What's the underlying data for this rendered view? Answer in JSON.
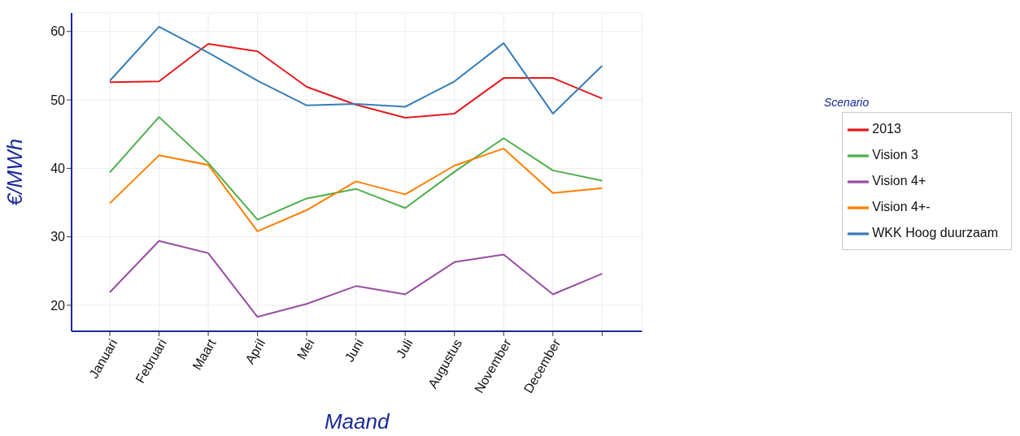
{
  "chart_data": {
    "type": "line",
    "xlabel": "Maand",
    "ylabel": "€/MWh",
    "legend_title": "Scenario",
    "categories": [
      "Januari",
      "Februari",
      "Maart",
      "April",
      "Mei",
      "Juni",
      "Juli",
      "Augustus",
      "November",
      "December",
      null
    ],
    "series": [
      {
        "name": "2013",
        "color": "#e41a1c",
        "values": [
          52.6,
          52.7,
          58.2,
          57.1,
          51.9,
          49.3,
          47.4,
          48.0,
          53.2,
          53.2,
          50.2
        ]
      },
      {
        "name": "WKK Hoog duurzaam",
        "color": "#377eb8",
        "values": [
          52.8,
          60.7,
          56.9,
          52.8,
          49.2,
          49.4,
          49.0,
          52.7,
          58.3,
          48.0,
          55.0
        ]
      },
      {
        "name": "Vision 3",
        "color": "#4daf4a",
        "values": [
          39.4,
          47.5,
          40.8,
          32.5,
          35.6,
          37.0,
          34.2,
          39.5,
          44.4,
          39.7,
          38.2
        ]
      },
      {
        "name": "Vision 4+",
        "color": "#984ea3",
        "values": [
          21.9,
          29.4,
          27.6,
          18.3,
          20.2,
          22.8,
          21.6,
          26.3,
          27.4,
          21.6,
          24.6
        ]
      },
      {
        "name": "Vision 4+-",
        "color": "#ff7f00",
        "values": [
          34.9,
          41.9,
          40.5,
          30.8,
          33.9,
          38.1,
          36.2,
          40.4,
          42.9,
          36.4,
          37.1
        ]
      }
    ],
    "ylim": [
      16.2,
      62.7
    ],
    "yticks": [
      20,
      30,
      40,
      50,
      60
    ],
    "grid": true,
    "legend": "right",
    "marker": "none",
    "line_style": "solid"
  }
}
